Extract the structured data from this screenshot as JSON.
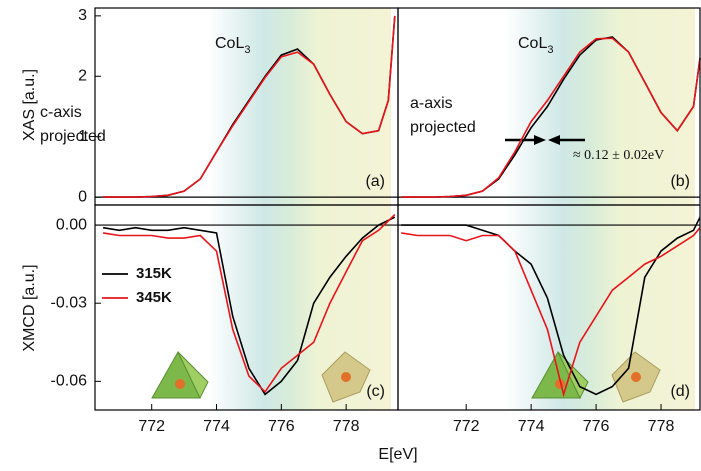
{
  "axis_labels": {
    "y_top": "XAS [a.u.]",
    "y_bottom": "XMCD [a.u.]",
    "x": "E[eV]"
  },
  "chart_data": [
    {
      "type": "line",
      "panel_label": "(a)",
      "edge_label": {
        "text": "CoL",
        "sub": "3"
      },
      "note": [
        "c-axis",
        "projected"
      ],
      "xlim": [
        770.25,
        779.6
      ],
      "ylim": [
        -0.13,
        3.13
      ],
      "yticks": [
        0,
        1,
        2,
        3
      ],
      "x": [
        770.5,
        771,
        771.5,
        772,
        772.5,
        773,
        773.5,
        774,
        774.5,
        775,
        775.5,
        776,
        776.5,
        777,
        777.5,
        778,
        778.5,
        779,
        779.3,
        779.5
      ],
      "series": [
        {
          "color": "#000000",
          "values": [
            0,
            0,
            0,
            0.01,
            0.03,
            0.1,
            0.3,
            0.75,
            1.2,
            1.6,
            2.0,
            2.35,
            2.45,
            2.2,
            1.7,
            1.25,
            1.05,
            1.1,
            1.6,
            3.0
          ]
        },
        {
          "color": "#e8141c",
          "values": [
            0,
            0,
            0,
            0.01,
            0.03,
            0.1,
            0.3,
            0.75,
            1.18,
            1.58,
            1.98,
            2.32,
            2.4,
            2.2,
            1.7,
            1.25,
            1.05,
            1.1,
            1.6,
            3.0
          ]
        }
      ]
    },
    {
      "type": "line",
      "panel_label": "(b)",
      "edge_label": {
        "text": "CoL",
        "sub": "3"
      },
      "note": [
        "a-axis",
        "projected"
      ],
      "width_label": "≈ 0.12 ± 0.02eV",
      "xlim": [
        769.9,
        779.2
      ],
      "ylim": [
        -0.13,
        3.13
      ],
      "x": [
        770,
        770.5,
        771,
        771.5,
        772,
        772.5,
        773,
        773.5,
        774,
        774.5,
        775,
        775.5,
        776,
        776.5,
        777,
        777.5,
        778,
        778.5,
        779,
        779.2
      ],
      "series": [
        {
          "color": "#000000",
          "values": [
            0,
            0,
            0,
            0.01,
            0.03,
            0.1,
            0.3,
            0.7,
            1.15,
            1.5,
            1.95,
            2.35,
            2.6,
            2.65,
            2.4,
            1.9,
            1.4,
            1.1,
            1.5,
            2.3
          ]
        },
        {
          "color": "#e8141c",
          "values": [
            0,
            0,
            0,
            0.01,
            0.03,
            0.1,
            0.32,
            0.75,
            1.25,
            1.6,
            2.0,
            2.4,
            2.62,
            2.63,
            2.4,
            1.9,
            1.4,
            1.1,
            1.5,
            2.3
          ]
        }
      ]
    },
    {
      "type": "line",
      "panel_label": "(c)",
      "legend": "upper left",
      "xlim": [
        770.25,
        779.6
      ],
      "ylim": [
        -0.071,
        0.0077
      ],
      "xticks": [
        772,
        774,
        776,
        778
      ],
      "yticks": [
        {
          "value": 0,
          "label": "0.00"
        },
        {
          "value": -0.03,
          "label": "-0.03"
        },
        {
          "value": -0.06,
          "label": "-0.06"
        }
      ],
      "x": [
        770.5,
        771,
        771.5,
        772,
        772.5,
        773,
        773.5,
        774,
        774.5,
        775,
        775.5,
        776,
        776.5,
        777,
        777.5,
        778,
        778.5,
        779,
        779.5
      ],
      "series": [
        {
          "name": "315K",
          "color": "#000000",
          "values": [
            -0.001,
            -0.002,
            -0.001,
            -0.002,
            -0.002,
            -0.001,
            -0.002,
            -0.003,
            -0.035,
            -0.055,
            -0.065,
            -0.06,
            -0.052,
            -0.03,
            -0.02,
            -0.012,
            -0.005,
            0,
            0.003
          ]
        },
        {
          "name": "345K",
          "color": "#e8141c",
          "values": [
            -0.003,
            -0.004,
            -0.004,
            -0.004,
            -0.005,
            -0.005,
            -0.004,
            -0.01,
            -0.04,
            -0.058,
            -0.064,
            -0.055,
            -0.05,
            -0.045,
            -0.03,
            -0.018,
            -0.006,
            -0.002,
            0.004
          ]
        }
      ]
    },
    {
      "type": "line",
      "panel_label": "(d)",
      "xlim": [
        769.9,
        779.2
      ],
      "ylim": [
        -0.071,
        0.0077
      ],
      "xticks": [
        772,
        774,
        776,
        778
      ],
      "x": [
        770,
        770.5,
        771,
        771.5,
        772,
        772.5,
        773,
        773.5,
        774,
        774.5,
        775,
        775.5,
        776,
        776.5,
        777,
        777.5,
        778,
        778.5,
        779,
        779.2
      ],
      "series": [
        {
          "color": "#000000",
          "values": [
            0,
            0,
            0,
            0,
            0,
            -0.002,
            -0.004,
            -0.01,
            -0.015,
            -0.028,
            -0.05,
            -0.062,
            -0.065,
            -0.062,
            -0.055,
            -0.02,
            -0.01,
            -0.005,
            -0.002,
            0.003
          ]
        },
        {
          "color": "#e8141c",
          "values": [
            -0.003,
            -0.004,
            -0.004,
            -0.004,
            -0.006,
            -0.004,
            -0.004,
            -0.01,
            -0.025,
            -0.04,
            -0.065,
            -0.045,
            -0.035,
            -0.025,
            -0.02,
            -0.015,
            -0.012,
            -0.008,
            -0.004,
            -0.001
          ]
        }
      ]
    }
  ]
}
